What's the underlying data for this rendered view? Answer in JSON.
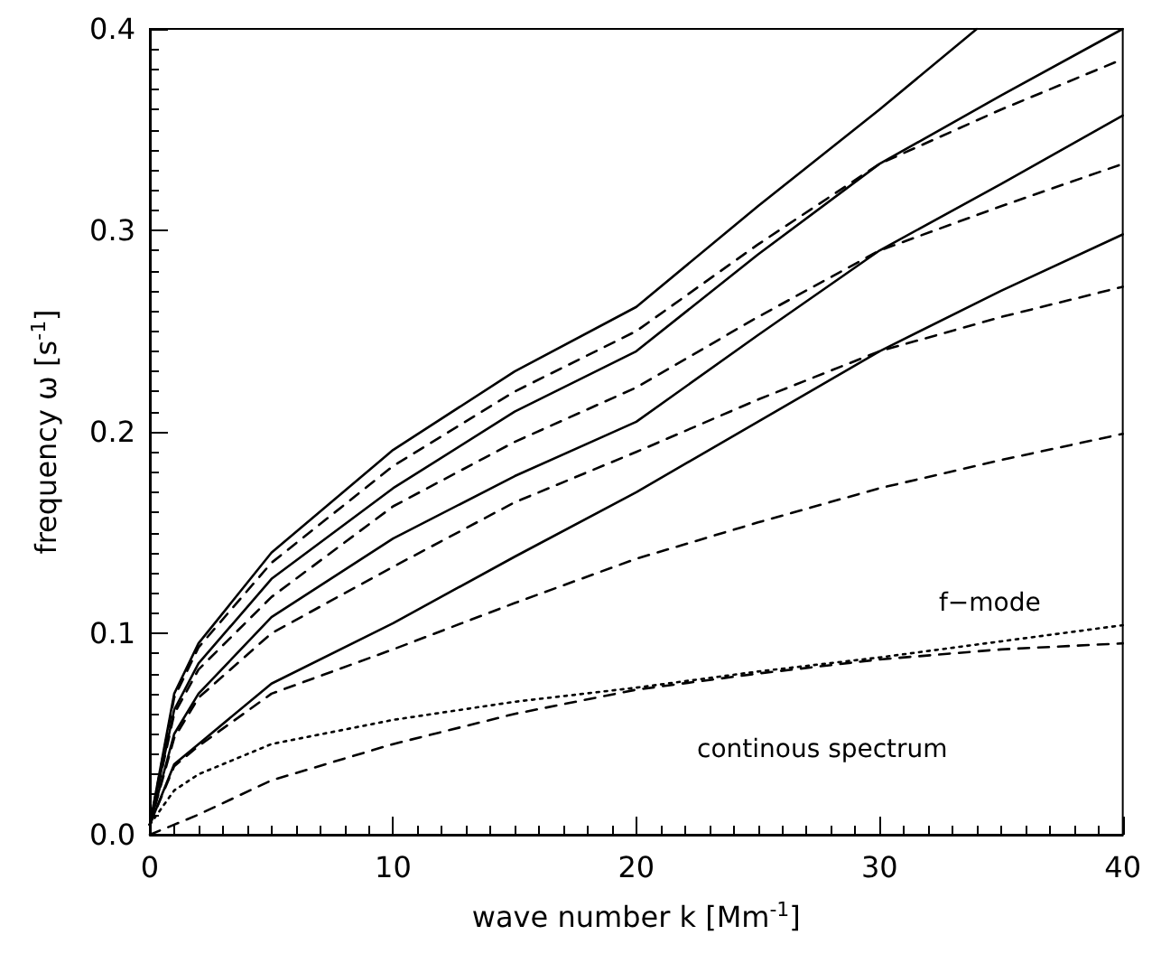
{
  "chart_data": {
    "type": "line",
    "xlabel": "wave number k [Mm$^{-1}$]",
    "ylabel": "frequency ω [s$^{-1}$]",
    "x": [
      0,
      1,
      2,
      5,
      10,
      15,
      20,
      25,
      30,
      35,
      40
    ],
    "xlim": [
      0,
      40
    ],
    "xticks": [
      0,
      10,
      20,
      30,
      40
    ],
    "ylim": [
      0,
      0.4
    ],
    "yticks": [
      {
        "value": 0,
        "label": "0.0"
      },
      0.1,
      0.2,
      0.3,
      0.4
    ],
    "marker": "none",
    "series": [
      {
        "color": "#000000",
        "line_style": "solid",
        "x": [
          0,
          1,
          2,
          5,
          10,
          15,
          20,
          25,
          30,
          34
        ],
        "values": [
          0.005,
          0.07,
          0.095,
          0.14,
          0.191,
          0.23,
          0.262,
          0.312,
          0.36,
          0.4
        ]
      },
      {
        "color": "#000000",
        "line_style": "solid",
        "values": [
          0.005,
          0.062,
          0.085,
          0.127,
          0.172,
          0.21,
          0.24,
          0.288,
          0.333,
          0.367,
          0.4
        ]
      },
      {
        "color": "#000000",
        "line_style": "solid",
        "values": [
          0.005,
          0.05,
          0.07,
          0.108,
          0.147,
          0.178,
          0.205,
          0.248,
          0.29,
          0.323,
          0.357
        ]
      },
      {
        "color": "#000000",
        "line_style": "solid",
        "values": [
          0.005,
          0.035,
          0.045,
          0.075,
          0.105,
          0.138,
          0.17,
          0.205,
          0.24,
          0.27,
          0.298
        ]
      },
      {
        "color": "#000000",
        "line_style": "dashed",
        "values": [
          0.005,
          0.068,
          0.093,
          0.135,
          0.183,
          0.22,
          0.25,
          0.293,
          0.333,
          0.36,
          0.385
        ]
      },
      {
        "color": "#000000",
        "line_style": "dashed",
        "values": [
          0.005,
          0.06,
          0.082,
          0.118,
          0.163,
          0.195,
          0.222,
          0.257,
          0.29,
          0.312,
          0.333
        ]
      },
      {
        "color": "#000000",
        "line_style": "dashed",
        "values": [
          0.005,
          0.048,
          0.068,
          0.1,
          0.133,
          0.165,
          0.19,
          0.216,
          0.24,
          0.257,
          0.272
        ]
      },
      {
        "color": "#000000",
        "line_style": "dashed",
        "values": [
          0.005,
          0.034,
          0.044,
          0.07,
          0.092,
          0.115,
          0.137,
          0.155,
          0.172,
          0.186,
          0.199
        ]
      },
      {
        "color": "#000000",
        "line_style": "dotted",
        "values": [
          0.005,
          0.022,
          0.03,
          0.045,
          0.057,
          0.066,
          0.073,
          0.081,
          0.088,
          0.096,
          0.104
        ]
      },
      {
        "color": "#000000",
        "line_style": "dashed",
        "values": [
          0,
          0.005,
          0.01,
          0.027,
          0.045,
          0.06,
          0.072,
          0.08,
          0.087,
          0.092,
          0.095
        ]
      }
    ],
    "annotations": [
      "f−mode",
      "continous spectrum"
    ]
  }
}
